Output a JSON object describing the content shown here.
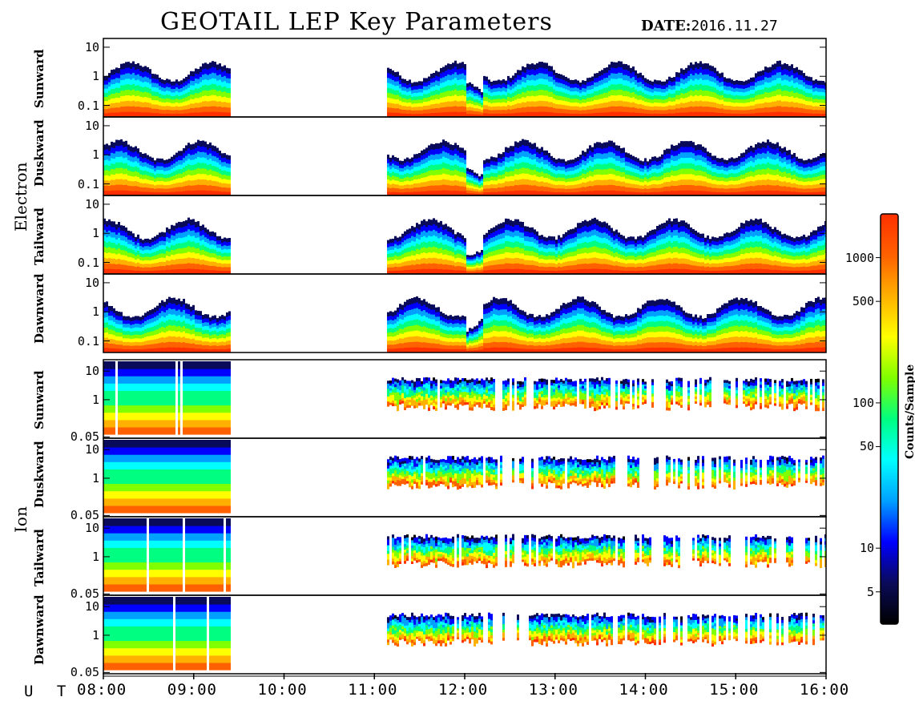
{
  "title": "GEOTAIL LEP Key Parameters",
  "date_label": "DATE:",
  "date_value": "2016.11.27",
  "ut_label": "U T",
  "colors": {
    "background": "#ffffff",
    "colormap": [
      "#000000",
      "#0a0a5a",
      "#0000ff",
      "#00a0ff",
      "#00ffff",
      "#00ff80",
      "#80ff00",
      "#ffff00",
      "#ffb000",
      "#ff6000",
      "#ff3000"
    ]
  },
  "chart_data": {
    "type": "heatmap",
    "title": "GEOTAIL LEP Key Parameters",
    "xlabel": "U T",
    "x_ticks": [
      "08:00",
      "09:00",
      "10:00",
      "11:00",
      "12:00",
      "13:00",
      "14:00",
      "15:00",
      "16:00"
    ],
    "x_range": [
      "08:00",
      "16:00"
    ],
    "y_scale": "log",
    "colorbar": {
      "label": "Counts/Sample",
      "scale": "log",
      "ticks": [
        5,
        10,
        50,
        100,
        500,
        1000
      ],
      "tick_labels": [
        "5",
        "10",
        "50",
        "100",
        "500",
        "1000"
      ]
    },
    "data_coverage_UT": [
      [
        "08:00",
        "09:24"
      ],
      [
        "11:08",
        "16:00"
      ]
    ],
    "groups": [
      {
        "name": "Electron",
        "y_ticks": [
          0.1,
          1,
          10
        ],
        "y_tick_labels": [
          "0.1",
          "1",
          "10"
        ],
        "panels": [
          {
            "name": "Sunward"
          },
          {
            "name": "Duskward"
          },
          {
            "name": "Tailward"
          },
          {
            "name": "Dawnward"
          }
        ]
      },
      {
        "name": "Ion",
        "y_ticks": [
          0.05,
          1,
          10
        ],
        "y_tick_labels": [
          "0.05",
          "1",
          "10"
        ],
        "panels": [
          {
            "name": "Sunward"
          },
          {
            "name": "Duskward"
          },
          {
            "name": "Tailward"
          },
          {
            "name": "Dawnward"
          }
        ]
      }
    ]
  }
}
